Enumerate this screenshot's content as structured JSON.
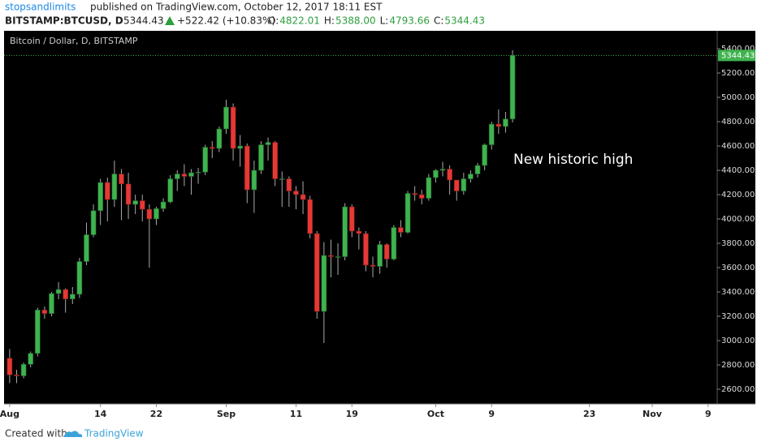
{
  "header": {
    "publisher": "stopsandlimits",
    "published": "published on TradingView.com, October 12, 2017 18:11 EST",
    "symbol": "BITSTAMP:BTCUSD, D",
    "last": "5344.43",
    "change": "+522.42 (+10.83%)",
    "ohlc": [
      {
        "label": "O:",
        "value": "4822.01"
      },
      {
        "label": "H:",
        "value": "5388.00"
      },
      {
        "label": "L:",
        "value": "4793.66"
      },
      {
        "label": "C:",
        "value": "5344.43"
      }
    ]
  },
  "chart_data": {
    "type": "candlestick",
    "title": "Bitcoin / Dollar, D, BITSTAMP",
    "annotation": "New historic high",
    "up_color": "#3fb34f",
    "down_color": "#e53935",
    "open": [
      2855,
      2718,
      2710,
      2805,
      2895,
      3252,
      3222,
      3387,
      3420,
      3342,
      3381,
      3650,
      3870,
      4068,
      4300,
      4160,
      4370,
      4288,
      4120,
      4150,
      4080,
      4000,
      4085,
      4140,
      4330,
      4370,
      4350,
      4380,
      4385,
      4590,
      4580,
      4740,
      4920,
      4580,
      4600,
      4240,
      4400,
      4610,
      4630,
      4330,
      4330,
      4230,
      4200,
      4160,
      3880,
      3240,
      3700,
      3690,
      3690,
      4100,
      3900,
      3880,
      3620,
      3610,
      3790,
      3670,
      3930,
      3890,
      4210,
      4200,
      4170,
      4340,
      4400,
      4410,
      4320,
      4230,
      4330,
      4370,
      4440,
      4610,
      4780,
      4760,
      4822.01
    ],
    "high": [
      2930,
      2760,
      2820,
      2910,
      3270,
      3280,
      3400,
      3480,
      3430,
      3440,
      3680,
      3970,
      4120,
      4330,
      4340,
      4480,
      4410,
      4380,
      4200,
      4200,
      4120,
      4100,
      4170,
      4360,
      4400,
      4450,
      4410,
      4420,
      4610,
      4640,
      4760,
      4980,
      4950,
      4690,
      4620,
      4480,
      4640,
      4670,
      4640,
      4390,
      4350,
      4270,
      4310,
      4190,
      3900,
      3810,
      3830,
      3800,
      4130,
      4120,
      3930,
      3900,
      3690,
      3820,
      3800,
      3950,
      3990,
      4230,
      4270,
      4240,
      4370,
      4410,
      4470,
      4440,
      4320,
      4380,
      4400,
      4460,
      4620,
      4800,
      4900,
      4880,
      5388
    ],
    "low": [
      2650,
      2650,
      2690,
      2780,
      2870,
      3180,
      3200,
      3340,
      3230,
      3300,
      3350,
      3620,
      3850,
      3950,
      3980,
      4100,
      3990,
      4000,
      4040,
      3980,
      3600,
      3950,
      4060,
      4130,
      4230,
      4270,
      4200,
      4290,
      4360,
      4500,
      4550,
      4700,
      4480,
      4430,
      4130,
      4050,
      4370,
      4480,
      4270,
      4100,
      4100,
      4080,
      4040,
      3840,
      3180,
      2980,
      3520,
      3540,
      3660,
      3850,
      3750,
      3570,
      3520,
      3550,
      3600,
      3660,
      3850,
      3880,
      4150,
      4120,
      4150,
      4300,
      4350,
      4200,
      4150,
      4200,
      4300,
      4340,
      4400,
      4570,
      4700,
      4710,
      4793.66
    ],
    "close": [
      2718,
      2710,
      2805,
      2895,
      3252,
      3222,
      3387,
      3420,
      3342,
      3381,
      3650,
      3870,
      4068,
      4300,
      4160,
      4370,
      4288,
      4120,
      4150,
      4080,
      4000,
      4085,
      4140,
      4330,
      4370,
      4350,
      4380,
      4385,
      4590,
      4580,
      4740,
      4920,
      4580,
      4600,
      4240,
      4400,
      4610,
      4630,
      4330,
      4330,
      4230,
      4200,
      4160,
      3880,
      3240,
      3700,
      3690,
      3690,
      4100,
      3900,
      3880,
      3620,
      3610,
      3790,
      3670,
      3930,
      3890,
      4210,
      4200,
      4170,
      4340,
      4400,
      4410,
      4320,
      4230,
      4330,
      4370,
      4440,
      4610,
      4780,
      4760,
      4822.01,
      5344.43
    ],
    "xlim": [
      -0.8,
      101.3
    ],
    "xticks": [
      {
        "value": 0,
        "label": "Aug"
      },
      {
        "value": 13,
        "label": "14"
      },
      {
        "value": 21,
        "label": "22"
      },
      {
        "value": 31,
        "label": "Sep"
      },
      {
        "value": 41,
        "label": "11"
      },
      {
        "value": 49,
        "label": "19"
      },
      {
        "value": 61,
        "label": "Oct"
      },
      {
        "value": 69,
        "label": "9"
      },
      {
        "value": 83,
        "label": "23"
      },
      {
        "value": 92,
        "label": "Nov"
      },
      {
        "value": 100,
        "label": "9"
      }
    ],
    "ylim": [
      2480,
      5547
    ],
    "yticks": [
      {
        "value": 2600,
        "label": "2600.00"
      },
      {
        "value": 2800,
        "label": "2800.00"
      },
      {
        "value": 3000,
        "label": "3000.00"
      },
      {
        "value": 3200,
        "label": "3200.00"
      },
      {
        "value": 3400,
        "label": "3400.00"
      },
      {
        "value": 3600,
        "label": "3600.00"
      },
      {
        "value": 3800,
        "label": "3800.00"
      },
      {
        "value": 4000,
        "label": "4000.00"
      },
      {
        "value": 4200,
        "label": "4200.00"
      },
      {
        "value": 4400,
        "label": "4400.00"
      },
      {
        "value": 4600,
        "label": "4600.00"
      },
      {
        "value": 4800,
        "label": "4800.00"
      },
      {
        "value": 5000,
        "label": "5000.00"
      },
      {
        "value": 5200,
        "label": "5200.00"
      },
      {
        "value": 5400,
        "label": "5400.00"
      }
    ]
  },
  "footer": {
    "created": "Created with",
    "brand": "TradingView"
  }
}
